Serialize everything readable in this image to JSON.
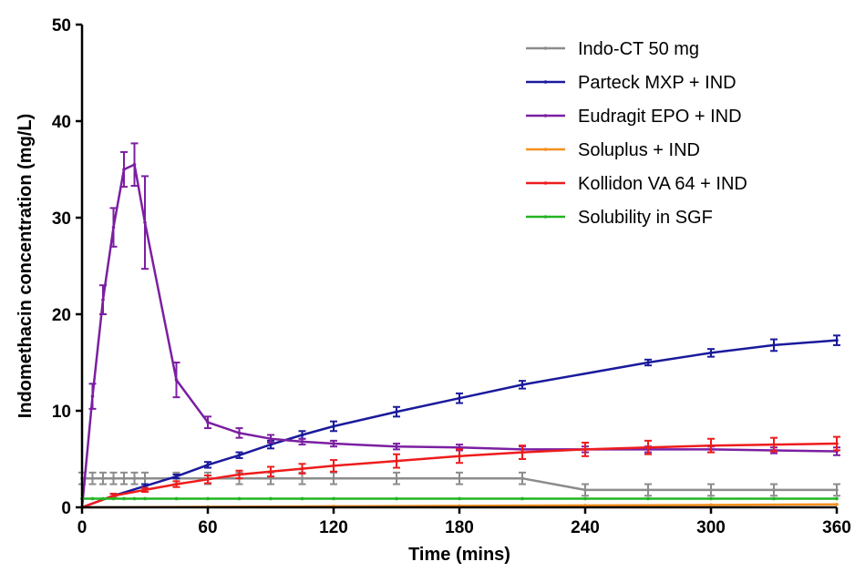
{
  "chart_data": {
    "type": "line",
    "title": "",
    "xlabel": "Time (mins)",
    "ylabel": "Indomethacin concentration (mg/L)",
    "xlim": [
      0,
      360
    ],
    "ylim": [
      0,
      50
    ],
    "xticks": [
      "0",
      "60",
      "120",
      "180",
      "240",
      "300",
      "360"
    ],
    "yticks": [
      "0",
      "10",
      "20",
      "30",
      "40",
      "50"
    ],
    "grid": false,
    "legend_position": "top-right",
    "series": [
      {
        "name": "Indo-CT 50 mg",
        "color": "#8c8c8c",
        "x": [
          0,
          5,
          10,
          15,
          20,
          25,
          30,
          45,
          60,
          75,
          90,
          105,
          120,
          150,
          180,
          210,
          240,
          270,
          300,
          330,
          360
        ],
        "y": [
          3,
          3,
          3,
          3,
          3,
          3,
          3,
          3,
          3,
          3,
          3,
          3,
          3,
          3,
          3,
          3,
          1.8,
          1.8,
          1.8,
          1.8,
          1.8
        ],
        "err": [
          0.6,
          0.6,
          0.6,
          0.6,
          0.6,
          0.6,
          0.6,
          0.6,
          0.6,
          0.6,
          0.6,
          0.6,
          0.6,
          0.6,
          0.6,
          0.6,
          0.6,
          0.6,
          0.6,
          0.6,
          0.6
        ]
      },
      {
        "name": "Parteck MXP + IND",
        "color": "#1a1a9c",
        "x": [
          0,
          15,
          30,
          45,
          60,
          75,
          90,
          105,
          120,
          150,
          180,
          210,
          270,
          300,
          330,
          360
        ],
        "y": [
          0,
          1.2,
          2.2,
          3.2,
          4.4,
          5.4,
          6.5,
          7.5,
          8.4,
          9.9,
          11.3,
          12.7,
          15.0,
          16.0,
          16.8,
          17.3
        ],
        "err": [
          0,
          0.2,
          0.2,
          0.2,
          0.3,
          0.3,
          0.4,
          0.4,
          0.5,
          0.5,
          0.5,
          0.4,
          0.3,
          0.4,
          0.6,
          0.5
        ]
      },
      {
        "name": "Eudragit EPO + IND",
        "color": "#7b1fa2",
        "x": [
          0,
          5,
          10,
          15,
          20,
          25,
          30,
          45,
          60,
          75,
          90,
          105,
          120,
          150,
          180,
          210,
          240,
          270,
          300,
          330,
          360
        ],
        "y": [
          0,
          11.5,
          21.5,
          29,
          35,
          35.5,
          29.5,
          13.2,
          8.8,
          7.7,
          7.1,
          6.8,
          6.6,
          6.3,
          6.2,
          6.0,
          6.0,
          6.0,
          6.0,
          5.9,
          5.8
        ],
        "err": [
          0,
          1.3,
          1.5,
          2.0,
          1.8,
          2.2,
          4.8,
          1.8,
          0.6,
          0.5,
          0.4,
          0.3,
          0.3,
          0.3,
          0.3,
          0.3,
          0.3,
          0.3,
          0.3,
          0.3,
          0.4
        ]
      },
      {
        "name": "Soluplus + IND",
        "color": "#f5901e",
        "x": [
          0,
          60,
          120,
          180,
          240,
          300,
          360
        ],
        "y": [
          0,
          0.05,
          0.1,
          0.15,
          0.2,
          0.25,
          0.3
        ],
        "err": [
          0,
          0,
          0,
          0,
          0,
          0,
          0
        ]
      },
      {
        "name": "Kollidon VA 64 + IND",
        "color": "#ee1c1c",
        "x": [
          0,
          15,
          30,
          45,
          60,
          75,
          90,
          105,
          120,
          150,
          180,
          210,
          240,
          270,
          300,
          330,
          360
        ],
        "y": [
          0,
          1.2,
          1.8,
          2.4,
          2.9,
          3.4,
          3.7,
          4.0,
          4.3,
          4.8,
          5.3,
          5.7,
          6.0,
          6.2,
          6.4,
          6.5,
          6.6
        ],
        "err": [
          0,
          0.2,
          0.2,
          0.3,
          0.4,
          0.4,
          0.5,
          0.5,
          0.6,
          0.7,
          0.7,
          0.7,
          0.7,
          0.7,
          0.7,
          0.7,
          0.7
        ]
      },
      {
        "name": "Solubility in SGF",
        "color": "#22b522",
        "x": [
          0,
          5,
          10,
          15,
          20,
          25,
          30,
          45,
          60,
          75,
          90,
          105,
          120,
          150,
          180,
          210,
          240,
          270,
          300,
          330,
          360
        ],
        "y": [
          0.9,
          0.9,
          0.9,
          0.9,
          0.9,
          0.9,
          0.9,
          0.9,
          0.9,
          0.9,
          0.9,
          0.9,
          0.9,
          0.9,
          0.9,
          0.9,
          0.9,
          0.9,
          0.9,
          0.9,
          0.9
        ],
        "err": [
          0,
          0,
          0,
          0,
          0,
          0,
          0,
          0,
          0,
          0,
          0,
          0,
          0,
          0,
          0,
          0,
          0,
          0,
          0,
          0,
          0
        ]
      }
    ]
  }
}
